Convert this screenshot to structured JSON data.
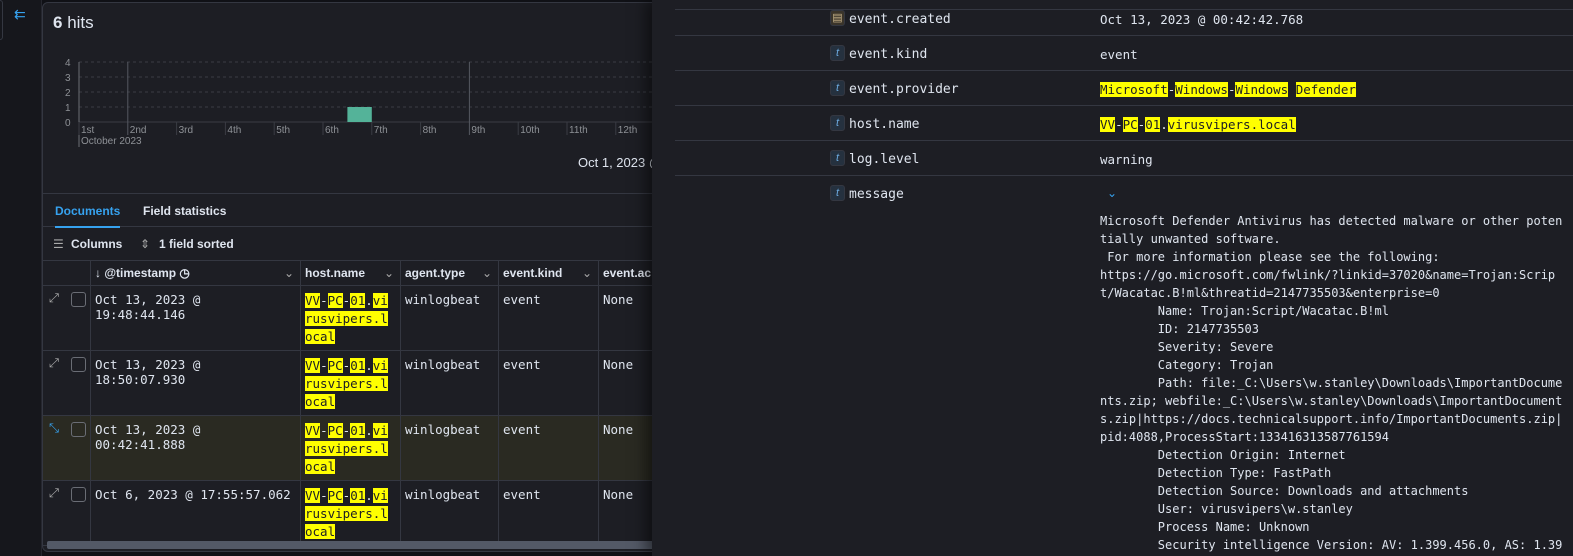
{
  "sidebar": {
    "collapse_icon": "collapse-left-icon"
  },
  "hits": {
    "count": "6",
    "label": "hits"
  },
  "chart_data": {
    "type": "bar",
    "x_unit": "12h buckets",
    "x": [
      "2023-10-06 12:00"
    ],
    "values": [
      1
    ],
    "ylim": [
      0,
      4
    ],
    "yticks": [
      "0",
      "1",
      "2",
      "3",
      "4"
    ],
    "xticks": [
      "1st",
      "2nd",
      "3rd",
      "4th",
      "5th",
      "6th",
      "7th",
      "8th",
      "9th",
      "10th",
      "11th",
      "12th"
    ],
    "xsublabel": "October 2023",
    "bar_color": "#54b399",
    "grid": true
  },
  "range_text": "Oct 1, 2023 @",
  "tabs": [
    {
      "label": "Documents",
      "active": true
    },
    {
      "label": "Field statistics",
      "active": false
    }
  ],
  "toolbar": {
    "columns": "Columns",
    "sorted": "1 field sorted"
  },
  "table": {
    "columns": [
      "@timestamp",
      "host.name",
      "agent.type",
      "event.kind",
      "event.ac"
    ],
    "rows": [
      {
        "timestamp": "Oct 13, 2023 @ 19:48:44.146",
        "agent": "winlogbeat",
        "kind": "event",
        "action": "None",
        "selected": false
      },
      {
        "timestamp": "Oct 13, 2023 @ 18:50:07.930",
        "agent": "winlogbeat",
        "kind": "event",
        "action": "None",
        "selected": false
      },
      {
        "timestamp": "Oct 13, 2023 @ 00:42:41.888",
        "agent": "winlogbeat",
        "kind": "event",
        "action": "None",
        "selected": true
      },
      {
        "timestamp": "Oct 6, 2023 @ 17:55:57.062",
        "agent": "winlogbeat",
        "kind": "event",
        "action": "None",
        "selected": false
      }
    ],
    "host_segments": [
      [
        "VV",
        true
      ],
      [
        "-",
        false
      ],
      [
        "PC",
        true
      ],
      [
        "-",
        false
      ],
      [
        "01",
        true
      ],
      [
        ".",
        false
      ],
      [
        "virusvipers.local",
        true
      ]
    ]
  },
  "flyout": {
    "fields": [
      {
        "name": "event.created",
        "type": "date",
        "value": "Oct 13, 2023 @ 00:42:42.768"
      },
      {
        "name": "event.kind",
        "type": "t",
        "value": "event"
      },
      {
        "name": "event.provider",
        "type": "t",
        "segments": [
          [
            "Microsoft",
            true
          ],
          [
            "-",
            false
          ],
          [
            "Windows",
            true
          ],
          [
            "-",
            false
          ],
          [
            "Windows",
            true
          ],
          [
            " ",
            false
          ],
          [
            "Defender",
            true
          ]
        ]
      },
      {
        "name": "host.name",
        "type": "t",
        "segments": [
          [
            "VV",
            true
          ],
          [
            "-",
            false
          ],
          [
            "PC",
            true
          ],
          [
            "-",
            false
          ],
          [
            "01",
            true
          ],
          [
            ".",
            false
          ],
          [
            "virusvipers.local",
            true
          ]
        ]
      },
      {
        "name": "log.level",
        "type": "t",
        "value": "warning"
      },
      {
        "name": "message",
        "type": "t",
        "value": ""
      }
    ],
    "message": "Microsoft Defender Antivirus has detected malware or other poten\ntially unwanted software.\n For more information please see the following:\nhttps://go.microsoft.com/fwlink/?linkid=37020&name=Trojan:Scrip\nt/Wacatac.B!ml&threatid=2147735503&enterprise=0\n        Name: Trojan:Script/Wacatac.B!ml\n        ID: 2147735503\n        Severity: Severe\n        Category: Trojan\n        Path: file:_C:\\Users\\w.stanley\\Downloads\\ImportantDocume\nnts.zip; webfile:_C:\\Users\\w.stanley\\Downloads\\ImportantDocument\ns.zip|https://docs.technicalsupport.info/ImportantDocuments.zip|\npid:4088,ProcessStart:133416313587761594\n        Detection Origin: Internet\n        Detection Type: FastPath\n        Detection Source: Downloads and attachments\n        User: virusvipers\\w.stanley\n        Process Name: Unknown\n        Security intelligence Version: AV: 1.399.456.0, AS: 1.39"
  }
}
